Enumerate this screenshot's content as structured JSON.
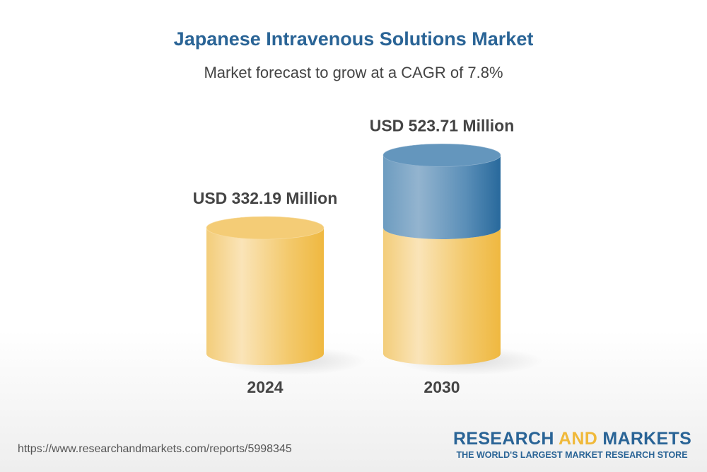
{
  "header": {
    "title": "Japanese Intravenous Solutions Market",
    "subtitle": "Market forecast to grow at a CAGR of 7.8%"
  },
  "chart_data": {
    "type": "bar",
    "style": "3d-cylinder",
    "categories": [
      "2024",
      "2030"
    ],
    "values": [
      332.19,
      523.71
    ],
    "value_labels": [
      "USD 332.19 Million",
      "USD 523.71 Million"
    ],
    "unit": "USD Million",
    "cagr": "7.8%",
    "colors": {
      "base": "#f0b93a",
      "growth": "#2a6496"
    }
  },
  "footer": {
    "url": "https://www.researchandmarkets.com/reports/5998345",
    "logo_part1": "RESEARCH ",
    "logo_part2": "AND",
    "logo_part3": " MARKETS",
    "tagline": "THE WORLD'S LARGEST MARKET RESEARCH STORE"
  }
}
